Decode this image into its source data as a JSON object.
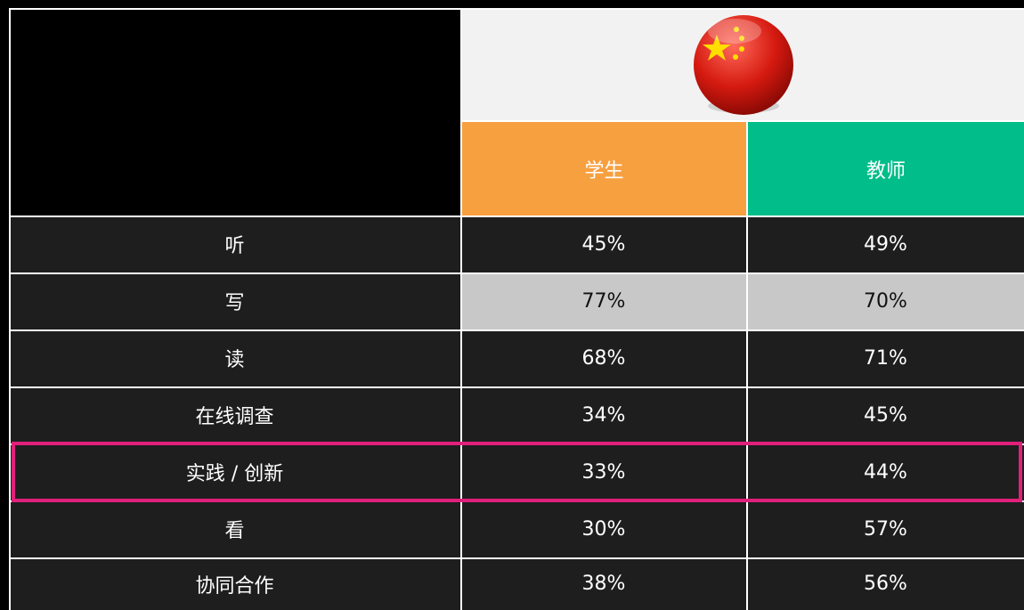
{
  "table": {
    "headers": [
      "学生",
      "教师"
    ],
    "rows": [
      [
        "听",
        "45%",
        "49%"
      ],
      [
        "写",
        "77%",
        "70%"
      ],
      [
        "读",
        "68%",
        "71%"
      ],
      [
        "在线调查",
        "34%",
        "45%"
      ],
      [
        "实践 / 创新",
        "33%",
        "44%"
      ],
      [
        "看",
        "30%",
        "57%"
      ],
      [
        "协同合作",
        "38%",
        "56%"
      ]
    ]
  }
}
